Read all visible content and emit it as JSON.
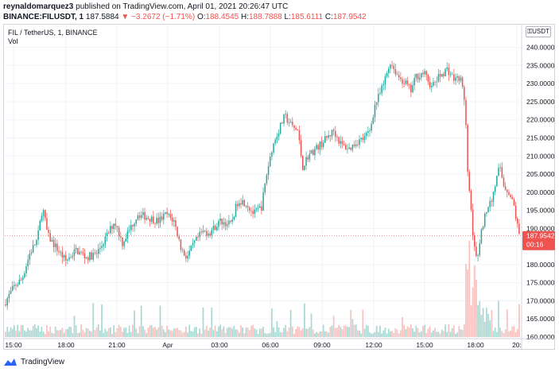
{
  "header": {
    "author": "reynaldomarquez3",
    "published_text": "published on TradingView.com, April 01, 2021 20:26:47 UTC",
    "symbol": "BINANCE:FILUSDT, 1",
    "last": "187.5884",
    "change": "−3.2672 (−1.71%)",
    "o_label": "O:",
    "o_value": "188.4545",
    "h_label": "H:",
    "h_value": "188.7888",
    "l_label": "L:",
    "l_value": "185.6111",
    "c_label": "C:",
    "c_value": "187.9542"
  },
  "legend": {
    "title": "FIL / TetherUS, 1, BINANCE",
    "vol": "Vol"
  },
  "currency_button": "USDT",
  "price_tag": {
    "value": "187.9542",
    "countdown": "00:16"
  },
  "footer": {
    "brand": "TradingView"
  },
  "colors": {
    "up": "#26a69a",
    "down": "#ef5350",
    "grid": "#f0f3fa",
    "vol_up": "#a8d9d3",
    "vol_down": "#f7c2c0"
  },
  "chart_data": {
    "type": "candlestick",
    "title": "FIL / TetherUS, 1, BINANCE",
    "ylim": [
      160,
      243
    ],
    "y_ticks": [
      "240.0000",
      "235.0000",
      "230.0000",
      "225.0000",
      "220.0000",
      "215.0000",
      "210.0000",
      "205.0000",
      "200.0000",
      "195.0000",
      "190.0000",
      "185.0000",
      "180.0000",
      "175.0000",
      "170.0000",
      "165.0000",
      "160.0000"
    ],
    "x_ticks": [
      "15:00",
      "18:00",
      "21:00",
      "Apr",
      "03:00",
      "06:00",
      "09:00",
      "12:00",
      "15:00",
      "18:00",
      "20:"
    ],
    "price_path": [
      [
        0,
        169
      ],
      [
        0.02,
        174
      ],
      [
        0.035,
        176
      ],
      [
        0.05,
        183
      ],
      [
        0.065,
        187
      ],
      [
        0.075,
        196
      ],
      [
        0.085,
        188
      ],
      [
        0.1,
        185
      ],
      [
        0.12,
        181
      ],
      [
        0.14,
        184
      ],
      [
        0.16,
        182
      ],
      [
        0.18,
        183
      ],
      [
        0.2,
        188
      ],
      [
        0.215,
        192
      ],
      [
        0.23,
        186
      ],
      [
        0.245,
        190
      ],
      [
        0.26,
        194
      ],
      [
        0.28,
        193
      ],
      [
        0.3,
        192
      ],
      [
        0.315,
        194
      ],
      [
        0.33,
        192
      ],
      [
        0.345,
        184
      ],
      [
        0.355,
        182
      ],
      [
        0.37,
        186
      ],
      [
        0.385,
        189
      ],
      [
        0.4,
        189
      ],
      [
        0.42,
        192
      ],
      [
        0.44,
        191
      ],
      [
        0.455,
        198
      ],
      [
        0.47,
        197
      ],
      [
        0.485,
        194
      ],
      [
        0.5,
        196
      ],
      [
        0.51,
        205
      ],
      [
        0.52,
        212
      ],
      [
        0.53,
        216
      ],
      [
        0.545,
        221
      ],
      [
        0.56,
        218
      ],
      [
        0.57,
        217
      ],
      [
        0.58,
        207
      ],
      [
        0.59,
        210
      ],
      [
        0.605,
        212
      ],
      [
        0.62,
        214
      ],
      [
        0.64,
        217
      ],
      [
        0.655,
        213
      ],
      [
        0.67,
        212
      ],
      [
        0.685,
        214
      ],
      [
        0.7,
        215
      ],
      [
        0.71,
        217
      ],
      [
        0.72,
        224
      ],
      [
        0.735,
        229
      ],
      [
        0.75,
        236
      ],
      [
        0.765,
        232
      ],
      [
        0.78,
        230
      ],
      [
        0.79,
        228
      ],
      [
        0.8,
        232
      ],
      [
        0.815,
        233
      ],
      [
        0.83,
        229
      ],
      [
        0.845,
        232
      ],
      [
        0.86,
        234
      ],
      [
        0.875,
        231
      ],
      [
        0.885,
        232
      ],
      [
        0.895,
        225
      ],
      [
        0.9,
        205
      ],
      [
        0.905,
        197
      ],
      [
        0.912,
        186
      ],
      [
        0.918,
        180
      ],
      [
        0.925,
        188
      ],
      [
        0.935,
        195
      ],
      [
        0.945,
        197
      ],
      [
        0.955,
        203
      ],
      [
        0.962,
        207
      ],
      [
        0.97,
        202
      ],
      [
        0.98,
        200
      ],
      [
        0.99,
        196
      ],
      [
        1,
        188
      ]
    ]
  }
}
